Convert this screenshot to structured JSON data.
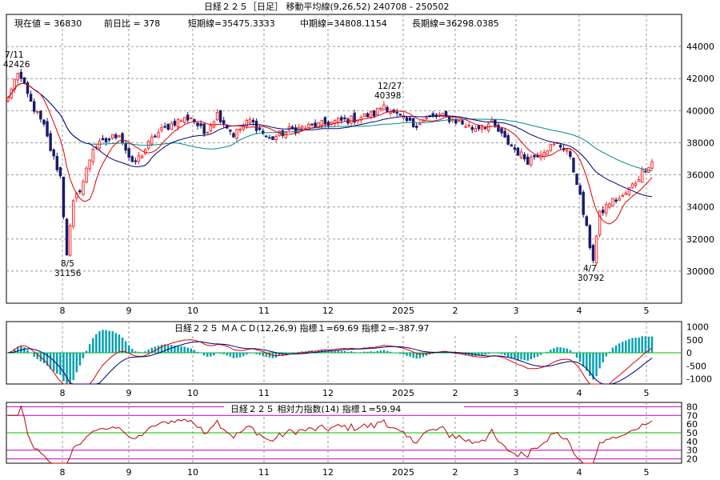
{
  "header": {
    "title": "日経２２５［日足］ 移動平均線(9,26,52)  240708 - 250502",
    "current": "現在値 = 36830",
    "change": "前日比 = 378",
    "short_ma": "短期線=35475.3333",
    "mid_ma": "中期線=34808.1154",
    "long_ma": "長期線=36298.0385"
  },
  "colors": {
    "up_candle": "#ff2a2a",
    "down_candle": "#1a1a6e",
    "short_ma": "#e00000",
    "mid_ma": "#00007a",
    "long_ma": "#008b8b",
    "macd_hist": "#00a0b0",
    "macd_line": "#e00000",
    "signal_line": "#00007a",
    "rsi_line": "#c00000",
    "rsi_band": "#c000c0",
    "zero_line": "#00c000",
    "grid": "#9a9a9a"
  },
  "chart_data": [
    {
      "type": "candlestick",
      "x_labels": [
        "8",
        "9",
        "10",
        "11",
        "12",
        "2025",
        "2",
        "3",
        "4",
        "5"
      ],
      "y_ticks": [
        "44000",
        "42000",
        "40000",
        "38000",
        "36000",
        "34000",
        "32000",
        "30000"
      ],
      "ylim": [
        28000,
        46000
      ],
      "annotations": [
        {
          "label": "7/11",
          "value": "42426"
        },
        {
          "label": "8/5",
          "value": "31156"
        },
        {
          "label": "12/27",
          "value": "40398"
        },
        {
          "label": "4/7",
          "value": "30792"
        }
      ],
      "price_anchors": [
        [
          0,
          40800
        ],
        [
          3,
          42426
        ],
        [
          7,
          40500
        ],
        [
          11,
          39000
        ],
        [
          13,
          37600
        ],
        [
          16,
          35900
        ],
        [
          18,
          31156
        ],
        [
          20,
          34200
        ],
        [
          23,
          35600
        ],
        [
          26,
          37700
        ],
        [
          30,
          38100
        ],
        [
          34,
          38600
        ],
        [
          38,
          36600
        ],
        [
          41,
          37300
        ],
        [
          45,
          38500
        ],
        [
          48,
          38900
        ],
        [
          51,
          39300
        ],
        [
          56,
          39600
        ],
        [
          60,
          38600
        ],
        [
          64,
          39800
        ],
        [
          69,
          38500
        ],
        [
          74,
          39400
        ],
        [
          80,
          38200
        ],
        [
          86,
          38800
        ],
        [
          92,
          39000
        ],
        [
          100,
          39300
        ],
        [
          106,
          39500
        ],
        [
          112,
          39800
        ],
        [
          115,
          40398
        ],
        [
          118,
          39800
        ],
        [
          124,
          39100
        ],
        [
          128,
          39500
        ],
        [
          132,
          39700
        ],
        [
          138,
          39300
        ],
        [
          142,
          38900
        ],
        [
          148,
          39200
        ],
        [
          152,
          38200
        ],
        [
          156,
          37400
        ],
        [
          159,
          36900
        ],
        [
          164,
          37600
        ],
        [
          168,
          37900
        ],
        [
          171,
          37600
        ],
        [
          174,
          35600
        ],
        [
          176,
          33600
        ],
        [
          178,
          31600
        ],
        [
          179,
          30792
        ],
        [
          181,
          33500
        ],
        [
          184,
          34300
        ],
        [
          188,
          34600
        ],
        [
          192,
          35600
        ],
        [
          195,
          36450
        ],
        [
          197,
          36830
        ]
      ],
      "series": [
        {
          "name": "短期線",
          "value": 35475.3333
        },
        {
          "name": "中期線",
          "value": 34808.1154
        },
        {
          "name": "長期線",
          "value": 36298.0385
        }
      ]
    },
    {
      "type": "line",
      "title": "日経２２５  ＭＡＣＤ(12,26,9) 指標１=69.69  指標２=-387.97",
      "y_ticks": [
        "1000",
        "500",
        "0",
        "-500",
        "-1000"
      ],
      "ylim": [
        -1200,
        1200
      ],
      "series": [
        {
          "name": "指標１",
          "value": 69.69
        },
        {
          "name": "指標２",
          "value": -387.97
        }
      ]
    },
    {
      "type": "line",
      "title": "日経２２５  相対力指数(14) 指標１=59.94",
      "y_ticks": [
        "80",
        "70",
        "60",
        "50",
        "40",
        "30",
        "20"
      ],
      "ylim": [
        15,
        85
      ],
      "series": [
        {
          "name": "指標１",
          "value": 59.94
        }
      ]
    }
  ]
}
